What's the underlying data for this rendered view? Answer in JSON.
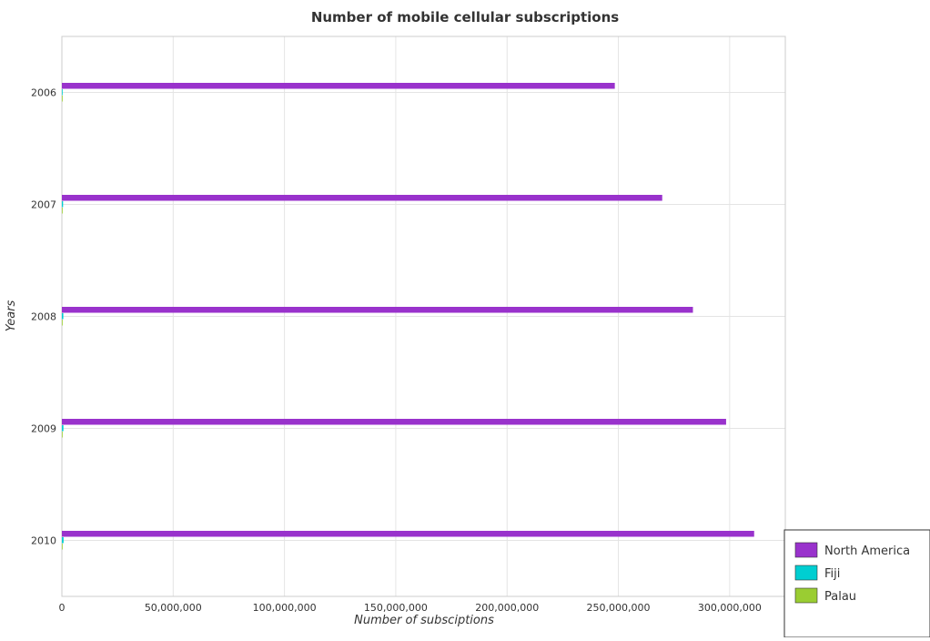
{
  "chart_data": {
    "type": "bar",
    "orientation": "horizontal",
    "title": "Number of mobile cellular subscriptions",
    "xlabel": "Number of subsciptions",
    "ylabel": "Years",
    "categories": [
      "2006",
      "2007",
      "2008",
      "2009",
      "2010"
    ],
    "series": [
      {
        "name": "North America",
        "color": "#9932cc",
        "values": [
          248400000,
          269700000,
          283500000,
          298400000,
          311000000
        ]
      },
      {
        "name": "Fiji",
        "color": "#00ced1",
        "values": [
          279000,
          535000,
          640000,
          703000,
          758000
        ]
      },
      {
        "name": "Palau",
        "color": "#9acd32",
        "values": [
          13000,
          13700,
          14600,
          15400,
          16500
        ]
      }
    ],
    "xlim": [
      0,
      325000000
    ],
    "xticks": [
      0,
      50000000,
      100000000,
      150000000,
      200000000,
      250000000,
      300000000
    ],
    "xtick_labels": [
      "0",
      "50,000,000",
      "100,000,000",
      "150,000,000",
      "200,000,000",
      "250,000,000",
      "300,000,000"
    ],
    "grid": true,
    "legend_position": "bottom-right"
  }
}
